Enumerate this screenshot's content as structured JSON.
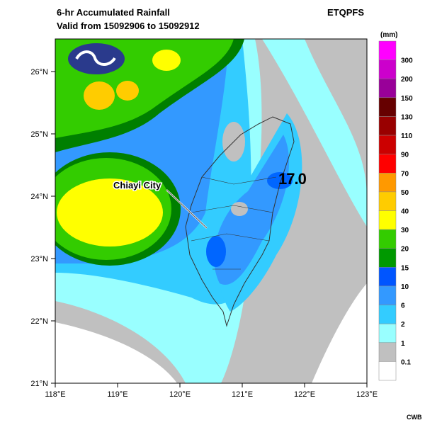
{
  "header": {
    "title": "6-hr Accumulated Rainfall",
    "subtitle": "Valid from 15092906 to 15092912",
    "product": "ETQPFS"
  },
  "legend": {
    "unit": "(mm)",
    "labels": [
      "300",
      "200",
      "150",
      "130",
      "110",
      "90",
      "70",
      "50",
      "40",
      "30",
      "20",
      "15",
      "10",
      "6",
      "2",
      "1",
      "0.1"
    ]
  },
  "axes": {
    "lat_labels": [
      "21°N",
      "22°N",
      "23°N",
      "24°N",
      "25°N",
      "26°N"
    ],
    "lon_labels": [
      "118°E",
      "119°E",
      "120°E",
      "121°E",
      "122°E",
      "123°E"
    ]
  },
  "annotations": {
    "city": "Chiayi City",
    "max_value": "17.0"
  },
  "footer": "CWB"
}
